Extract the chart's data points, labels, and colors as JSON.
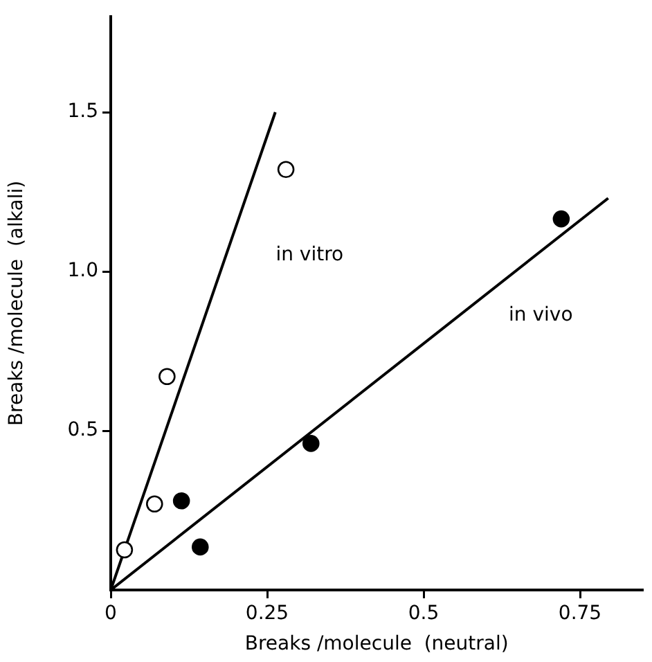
{
  "chart_data": {
    "type": "scatter",
    "xlabel": "Breaks /molecule  (neutral)",
    "ylabel": "Breaks /molecule  (alkali)",
    "xlim": [
      0,
      0.85
    ],
    "ylim": [
      0,
      1.8
    ],
    "xticks": [
      0,
      0.25,
      0.5,
      0.75
    ],
    "yticks": [
      0.5,
      {
        "value": 1,
        "label": "1.0"
      },
      1.5
    ],
    "grid": false,
    "legend": false,
    "marker": "circle",
    "series": [
      {
        "color": "#ffffff",
        "x": [
          0.022,
          0.07,
          0.09,
          0.28
        ],
        "values": [
          0.126,
          0.27,
          0.67,
          1.32
        ]
      },
      {
        "color": "#000000",
        "x": [
          0.113,
          0.143,
          0.32,
          0.72
        ],
        "values": [
          0.28,
          0.135,
          0.46,
          1.165
        ]
      },
      {
        "type": "line",
        "name": "in vitro",
        "marker": "none",
        "color": "#000000",
        "x": [
          0,
          0.263
        ],
        "values": [
          0,
          1.5
        ]
      },
      {
        "type": "line",
        "name": "in vivo",
        "marker": "none",
        "color": "#000000",
        "x": [
          0,
          0.795
        ],
        "values": [
          0,
          1.23
        ]
      }
    ]
  }
}
